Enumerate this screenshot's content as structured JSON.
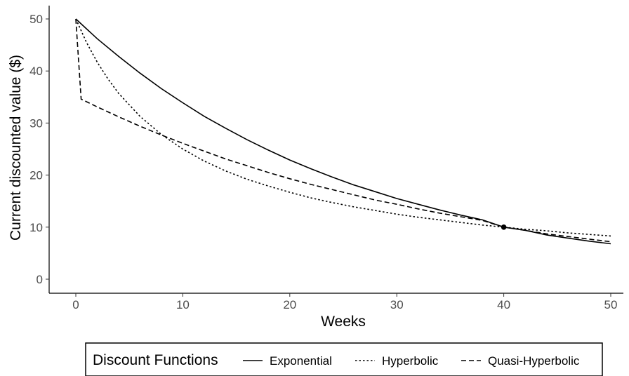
{
  "chart_data": {
    "type": "line",
    "xlabel": "Weeks",
    "ylabel": "Current discounted value ($)",
    "xlim": [
      0,
      50
    ],
    "ylim": [
      0,
      50
    ],
    "xticks": [
      0,
      10,
      20,
      30,
      40,
      50
    ],
    "yticks": [
      0,
      10,
      20,
      30,
      40,
      50
    ],
    "grid": false,
    "legend": {
      "position": "bottom",
      "title": "Discount Functions"
    },
    "series": [
      {
        "name": "Exponential",
        "style": "solid",
        "x": [
          0,
          2,
          4,
          6,
          8,
          10,
          12,
          14,
          16,
          18,
          20,
          22,
          24,
          26,
          28,
          30,
          32,
          34,
          36,
          38,
          40,
          42,
          44,
          46,
          48,
          50
        ],
        "y": [
          50,
          46.2,
          42.8,
          39.6,
          36.6,
          33.9,
          31.3,
          29.0,
          26.8,
          24.8,
          22.9,
          21.2,
          19.6,
          18.1,
          16.8,
          15.5,
          14.4,
          13.3,
          12.3,
          11.4,
          10.0,
          9.4,
          8.5,
          7.9,
          7.3,
          6.8
        ]
      },
      {
        "name": "Hyperbolic",
        "style": "dotted",
        "x": [
          0,
          1,
          2,
          3,
          4,
          6,
          8,
          10,
          12,
          14,
          16,
          18,
          20,
          22,
          24,
          26,
          28,
          30,
          32,
          34,
          36,
          38,
          40,
          42,
          44,
          46,
          48,
          50
        ],
        "y": [
          50,
          45.5,
          41.7,
          38.5,
          35.7,
          31.3,
          27.8,
          25.0,
          22.7,
          20.8,
          19.2,
          17.9,
          16.7,
          15.6,
          14.7,
          13.9,
          13.2,
          12.5,
          11.9,
          11.4,
          10.9,
          10.4,
          10.0,
          9.6,
          9.3,
          8.9,
          8.6,
          8.3
        ]
      },
      {
        "name": "Quasi-Hyperbolic",
        "style": "dashed",
        "x": [
          0,
          0.5,
          2,
          4,
          6,
          8,
          10,
          12,
          14,
          16,
          18,
          20,
          22,
          24,
          26,
          28,
          30,
          32,
          34,
          36,
          38,
          40,
          42,
          44,
          46,
          48,
          50
        ],
        "y": [
          50,
          34.6,
          33.1,
          31.2,
          29.4,
          27.7,
          26.1,
          24.6,
          23.1,
          21.8,
          20.5,
          19.3,
          18.2,
          17.2,
          16.2,
          15.2,
          14.4,
          13.5,
          12.7,
          12.0,
          11.3,
          10.0,
          9.4,
          8.7,
          8.2,
          7.7,
          7.2
        ]
      }
    ],
    "points": [
      {
        "x": 40,
        "y": 10
      }
    ]
  }
}
